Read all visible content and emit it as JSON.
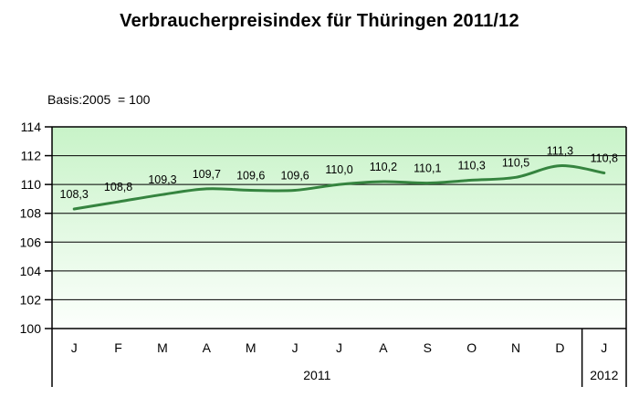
{
  "title": "Verbraucherpreisindex für Thüringen 2011/12",
  "subtitle": "Basis:2005  = 100",
  "chart_data": {
    "type": "line",
    "title": "Verbraucherpreisindex für Thüringen 2011/12",
    "subtitle": "Basis:2005  = 100",
    "categories": [
      "J",
      "F",
      "M",
      "A",
      "M",
      "J",
      "J",
      "A",
      "S",
      "O",
      "N",
      "D",
      "J"
    ],
    "year_groups": [
      {
        "label": "2011",
        "from": 0,
        "to": 11
      },
      {
        "label": "2012",
        "from": 12,
        "to": 12
      }
    ],
    "series": [
      {
        "name": "Verbraucherpreisindex",
        "values": [
          108.3,
          108.8,
          109.3,
          109.7,
          109.6,
          109.6,
          110.0,
          110.2,
          110.1,
          110.3,
          110.5,
          111.3,
          110.8
        ],
        "labels": [
          "108,3",
          "108,8",
          "109,3",
          "109,7",
          "109,6",
          "109,6",
          "110,0",
          "110,2",
          "110,1",
          "110,3",
          "110,5",
          "111,3",
          "110,8"
        ]
      }
    ],
    "ylim": [
      100,
      114
    ],
    "ytick_step": 2,
    "yticks": [
      100,
      102,
      104,
      106,
      108,
      110,
      112,
      114
    ],
    "grid": true,
    "smoothed": true,
    "legend": "none",
    "colors": {
      "line": "#35843f",
      "plot_gradient_top": "#c8f3c8",
      "plot_gradient_bottom": "#fcfffc",
      "axis": "#000000",
      "text": "#000000"
    }
  }
}
